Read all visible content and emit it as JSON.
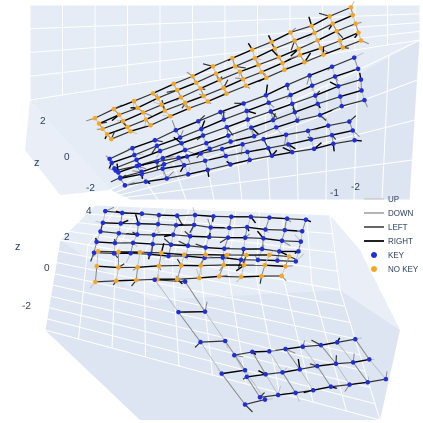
{
  "colors": {
    "pane": "#e5ecf6",
    "pane_side": "#dde5f2",
    "grid": "#ffffff",
    "key": "#1f2fd8",
    "no_key": "#f5a623",
    "up": "#b9b9b9",
    "down": "#8a8a8a",
    "left": "#333333",
    "right": "#000000"
  },
  "chart_data": [
    {
      "type": "scatter3d",
      "title": "",
      "zlabel": "z",
      "z_ticks": [
        "2",
        "0",
        "-2"
      ],
      "x_ticks": [
        "-1",
        "-2"
      ],
      "layers": [
        {
          "z": 2,
          "rows": 5,
          "cols": 14,
          "marker": "NO KEY"
        },
        {
          "z": 0,
          "rows": 5,
          "cols": 12,
          "marker": "KEY"
        },
        {
          "z": -2,
          "rows": 3,
          "cols": 12,
          "marker": "KEY"
        }
      ]
    },
    {
      "type": "scatter3d",
      "title": "",
      "zlabel": "z",
      "z_ticks": [
        "4",
        "2",
        "0",
        "-2"
      ],
      "layers": [
        {
          "z": 4,
          "rows": 5,
          "cols": 12,
          "marker": "KEY"
        },
        {
          "z": 0,
          "rows": 3,
          "cols": 10,
          "marker": "NO KEY"
        },
        {
          "z": -2,
          "rows": 5,
          "cols": 2,
          "marker": "KEY"
        },
        {
          "z": -3,
          "rows": 3,
          "cols": 8,
          "marker": "KEY"
        }
      ]
    }
  ],
  "legend": {
    "placement": "right",
    "items": [
      {
        "label": "UP",
        "kind": "line",
        "color_key": "up"
      },
      {
        "label": "DOWN",
        "kind": "line",
        "color_key": "down"
      },
      {
        "label": "LEFT",
        "kind": "line",
        "color_key": "left"
      },
      {
        "label": "RIGHT",
        "kind": "line",
        "color_key": "right"
      },
      {
        "label": "KEY",
        "kind": "marker",
        "color_key": "key"
      },
      {
        "label": "NO KEY",
        "kind": "marker",
        "color_key": "no_key"
      }
    ]
  }
}
